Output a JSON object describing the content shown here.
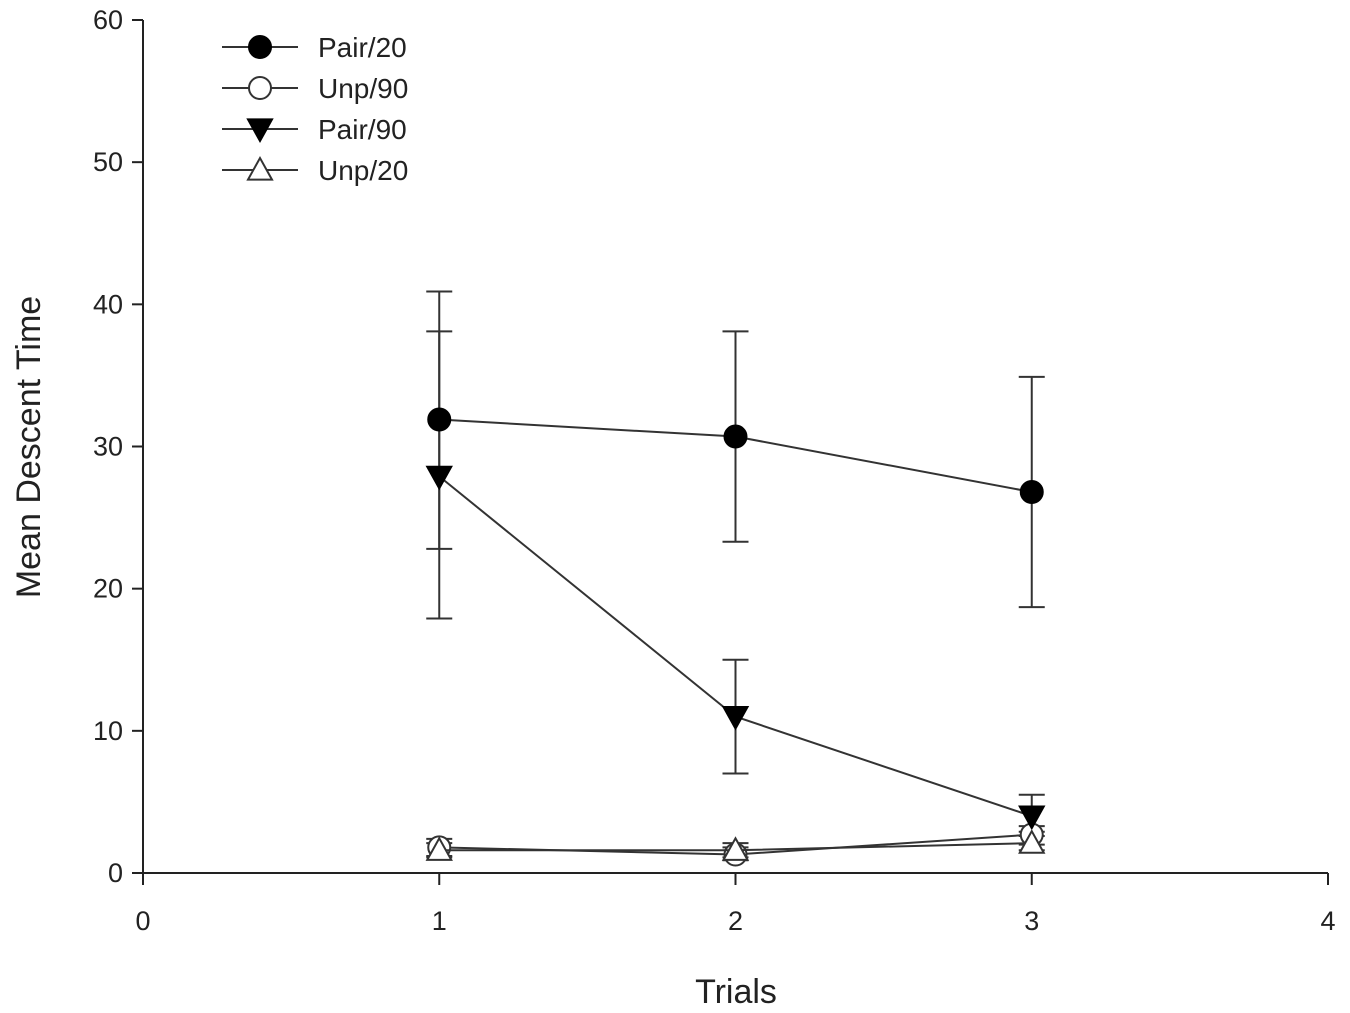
{
  "chart_data": {
    "type": "line",
    "title": "",
    "xlabel": "Trials",
    "ylabel": "Mean Descent Time",
    "xlim": [
      0,
      4
    ],
    "ylim": [
      0,
      60
    ],
    "xticks": [
      "0",
      "1",
      "2",
      "3",
      "4"
    ],
    "yticks": [
      "0",
      "10",
      "20",
      "30",
      "40",
      "50",
      "60"
    ],
    "grid": false,
    "legend_position": "top-left",
    "series": [
      {
        "name": "Pair/20",
        "marker": "filled-circle",
        "x": [
          1,
          2,
          3
        ],
        "y": [
          31.9,
          30.7,
          26.8
        ],
        "err_low": [
          17.9,
          23.3,
          18.7
        ],
        "err_high": [
          40.9,
          38.1,
          34.9
        ]
      },
      {
        "name": "Unp/90",
        "marker": "open-circle",
        "x": [
          1,
          2,
          3
        ],
        "y": [
          1.8,
          1.3,
          2.7
        ],
        "err_low": [
          1.2,
          0.9,
          2.0
        ],
        "err_high": [
          2.4,
          1.8,
          3.3
        ]
      },
      {
        "name": "Pair/90",
        "marker": "filled-triangle-down",
        "x": [
          1,
          2,
          3
        ],
        "y": [
          27.9,
          11.0,
          4.0
        ],
        "err_low": [
          22.8,
          7.0,
          2.9
        ],
        "err_high": [
          38.1,
          15.0,
          5.5
        ]
      },
      {
        "name": "Unp/20",
        "marker": "open-triangle-up",
        "x": [
          1,
          2,
          3
        ],
        "y": [
          1.6,
          1.6,
          2.1
        ],
        "err_low": [
          1.1,
          1.1,
          1.6
        ],
        "err_high": [
          2.1,
          2.1,
          2.6
        ]
      }
    ]
  }
}
